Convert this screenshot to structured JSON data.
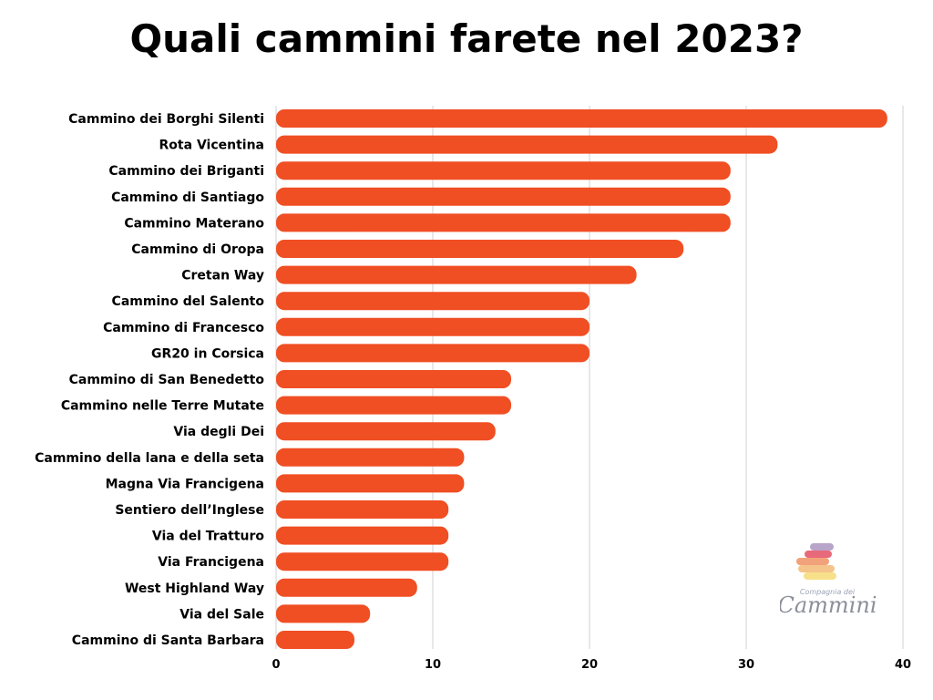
{
  "chart_data": {
    "type": "bar",
    "orientation": "horizontal",
    "title": "Quali cammini farete nel 2023?",
    "xlabel": "",
    "ylabel": "",
    "xlim": [
      0,
      40
    ],
    "x_ticks": [
      0,
      10,
      20,
      30,
      40
    ],
    "grid": "vertical",
    "bar_color": "#f04e23",
    "categories": [
      "Cammino dei Borghi Silenti",
      "Rota Vicentina",
      "Cammino dei Briganti",
      "Cammino di Santiago",
      "Cammino Materano",
      "Cammino di Oropa",
      "Cretan Way",
      "Cammino del Salento",
      "Cammino di Francesco",
      "GR20 in Corsica",
      "Cammino di San Benedetto",
      "Cammino nelle Terre Mutate",
      "Via degli Dei",
      "Cammino della lana e della seta",
      "Magna Via Francigena",
      "Sentiero dell’Inglese",
      "Via del Tratturo",
      "Via Francigena",
      "West Highland Way",
      "Via del Sale",
      "Cammino di Santa Barbara"
    ],
    "values": [
      39,
      32,
      29,
      29,
      29,
      26,
      23,
      20,
      20,
      20,
      15,
      15,
      14,
      12,
      12,
      11,
      11,
      11,
      9,
      6,
      5
    ]
  },
  "logo": {
    "small_text": "Compagnia dei",
    "big_text": "Cammini",
    "stone_colors": [
      "#b8a5c9",
      "#e86a7a",
      "#f2a27a",
      "#f5c48a",
      "#f7e08a"
    ]
  }
}
